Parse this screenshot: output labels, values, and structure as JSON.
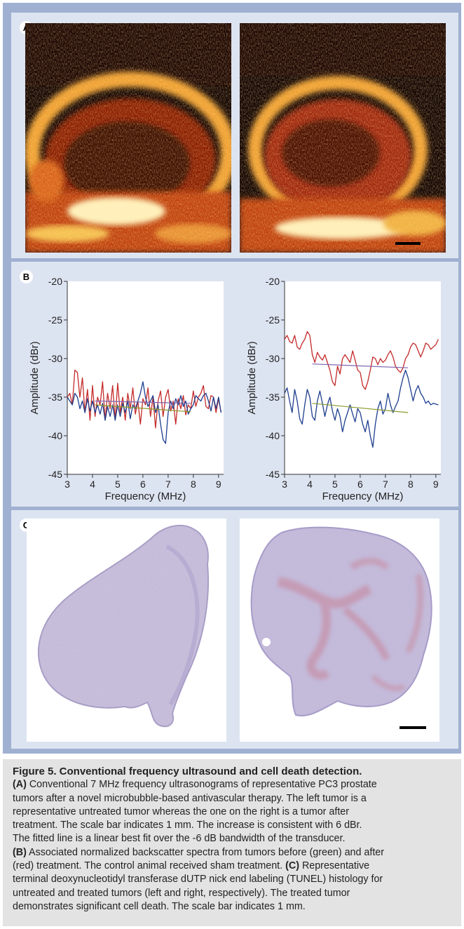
{
  "panels": {
    "a": {
      "letter": "A"
    },
    "b": {
      "letter": "B"
    },
    "c": {
      "letter": "C"
    }
  },
  "colors": {
    "red": "#c42b2b",
    "blue": "#1e3e8f",
    "green": "#8a9a2a",
    "purple": "#7d64b0"
  },
  "chart_data": [
    {
      "type": "line",
      "xlabel": "Frequency (MHz)",
      "ylabel": "Amplitude (dBr)",
      "xlim": [
        3,
        9.2
      ],
      "ylim": [
        -45,
        -20
      ],
      "xticks": [
        "3",
        "4",
        "5",
        "6",
        "7",
        "8",
        "9"
      ],
      "yticks": [
        "-20",
        "-25",
        "-30",
        "-35",
        "-40",
        "-45"
      ],
      "grid": false,
      "series": [
        {
          "color": "#c42b2b",
          "x": [
            3,
            3.1,
            3.2,
            3.3,
            3.4,
            3.5,
            3.6,
            3.7,
            3.8,
            3.9,
            4.0,
            4.1,
            4.2,
            4.3,
            4.4,
            4.5,
            4.6,
            4.7,
            4.8,
            4.9,
            5.0,
            5.1,
            5.2,
            5.3,
            5.4,
            5.5,
            5.6,
            5.7,
            5.8,
            5.9,
            6.0,
            6.1,
            6.2,
            6.3,
            6.4,
            6.5,
            6.6,
            6.7,
            6.8,
            6.9,
            7.0,
            7.1,
            7.2,
            7.3,
            7.4,
            7.5,
            7.6,
            7.7,
            7.8,
            7.9,
            8.0,
            8.1,
            8.2,
            8.3,
            8.4,
            8.5,
            8.6,
            8.7,
            8.8,
            8.9,
            9.0,
            9.1
          ],
          "values": [
            -35,
            -34.5,
            -36,
            -31.5,
            -31.8,
            -35,
            -32.5,
            -37,
            -34,
            -38,
            -33.5,
            -37.5,
            -35,
            -36,
            -33,
            -38,
            -34.5,
            -36.5,
            -33.5,
            -38,
            -33.2,
            -37,
            -35,
            -38,
            -34.5,
            -36.5,
            -33.8,
            -37.2,
            -35.5,
            -38.5,
            -35.2,
            -36,
            -33.8,
            -37.5,
            -35,
            -39,
            -35.5,
            -34.2,
            -37.5,
            -35,
            -34,
            -36.8,
            -35.5,
            -38.5,
            -35.2,
            -36.5,
            -34.8,
            -37.3,
            -36,
            -36.5,
            -34.2,
            -36.2,
            -35,
            -34.5,
            -33.5,
            -36.2,
            -36.5,
            -34.8,
            -35,
            -37,
            -35.2,
            -37
          ]
        },
        {
          "color": "#1e3e8f",
          "x": [
            3,
            3.1,
            3.2,
            3.3,
            3.4,
            3.5,
            3.6,
            3.7,
            3.8,
            3.9,
            4.0,
            4.1,
            4.2,
            4.3,
            4.4,
            4.5,
            4.6,
            4.7,
            4.8,
            4.9,
            5.0,
            5.1,
            5.2,
            5.3,
            5.4,
            5.5,
            5.6,
            5.7,
            5.8,
            5.9,
            6.0,
            6.1,
            6.2,
            6.3,
            6.4,
            6.5,
            6.6,
            6.7,
            6.8,
            6.9,
            7.0,
            7.1,
            7.2,
            7.3,
            7.4,
            7.5,
            7.6,
            7.7,
            7.8,
            7.9,
            8.0,
            8.1,
            8.2,
            8.3,
            8.4,
            8.5,
            8.6,
            8.7,
            8.8,
            8.9,
            9.0,
            9.1
          ],
          "values": [
            -35,
            -35.5,
            -36,
            -34.5,
            -35,
            -36.5,
            -35.5,
            -37,
            -35.2,
            -36.8,
            -35.5,
            -37,
            -36,
            -37.2,
            -35.8,
            -38,
            -36.2,
            -37.5,
            -36,
            -38,
            -36,
            -37.5,
            -35.8,
            -37,
            -35.5,
            -37.8,
            -36,
            -36.5,
            -35.5,
            -34.5,
            -33,
            -35,
            -36.2,
            -35.5,
            -34.8,
            -37,
            -36,
            -38.5,
            -40.5,
            -41,
            -37,
            -35.5,
            -36.5,
            -35.2,
            -36,
            -34.8,
            -36.2,
            -35.5,
            -37.2,
            -36.5,
            -36,
            -34.8,
            -35.2,
            -35.5,
            -34.8,
            -34.5,
            -35.5,
            -36.8,
            -35,
            -36.5,
            -35,
            -37
          ]
        },
        {
          "color": "#8a9a2a",
          "x": [
            4.1,
            7.9
          ],
          "values": [
            -36.0,
            -36.9
          ]
        },
        {
          "color": "#7d64b0",
          "x": [
            4.1,
            7.9
          ],
          "values": [
            -35.5,
            -35.8
          ]
        }
      ]
    },
    {
      "type": "line",
      "xlabel": "Frequency (MHz)",
      "ylabel": "Amplitude (dBr)",
      "xlim": [
        3,
        9.2
      ],
      "ylim": [
        -45,
        -20
      ],
      "xticks": [
        "3",
        "4",
        "5",
        "6",
        "7",
        "8",
        "9"
      ],
      "yticks": [
        "-20",
        "-25",
        "-30",
        "-35",
        "-40",
        "-45"
      ],
      "grid": false,
      "series": [
        {
          "color": "#c42b2b",
          "x": [
            3,
            3.1,
            3.2,
            3.3,
            3.4,
            3.5,
            3.6,
            3.7,
            3.8,
            3.9,
            4.0,
            4.1,
            4.2,
            4.3,
            4.4,
            4.5,
            4.6,
            4.7,
            4.8,
            4.9,
            5.0,
            5.1,
            5.2,
            5.3,
            5.4,
            5.5,
            5.6,
            5.7,
            5.8,
            5.9,
            6.0,
            6.1,
            6.2,
            6.3,
            6.4,
            6.5,
            6.6,
            6.7,
            6.8,
            6.9,
            7.0,
            7.1,
            7.2,
            7.3,
            7.4,
            7.5,
            7.6,
            7.7,
            7.8,
            7.9,
            8.0,
            8.1,
            8.2,
            8.3,
            8.4,
            8.5,
            8.6,
            8.7,
            8.8,
            8.9,
            9.0,
            9.1
          ],
          "values": [
            -27.5,
            -27,
            -27.8,
            -28,
            -27,
            -28.5,
            -28.8,
            -28,
            -27.5,
            -26.5,
            -27,
            -29.5,
            -30.5,
            -29.2,
            -29.8,
            -30.2,
            -29.5,
            -30.5,
            -31.5,
            -33,
            -33.5,
            -31,
            -32,
            -30,
            -29.5,
            -30,
            -30.5,
            -29,
            -30.2,
            -31.5,
            -31.8,
            -33.5,
            -34,
            -33,
            -31.5,
            -29.8,
            -30,
            -30.8,
            -30,
            -30.5,
            -30.2,
            -29.5,
            -29,
            -29.8,
            -31,
            -31.5,
            -31.8,
            -31.2,
            -30,
            -29.5,
            -28.5,
            -28,
            -28.2,
            -29,
            -29.8,
            -29,
            -28,
            -28.2,
            -28.8,
            -28.5,
            -28.2,
            -27.5
          ]
        },
        {
          "color": "#1e3e8f",
          "x": [
            3,
            3.1,
            3.2,
            3.3,
            3.4,
            3.5,
            3.6,
            3.7,
            3.8,
            3.9,
            4.0,
            4.1,
            4.2,
            4.3,
            4.4,
            4.5,
            4.6,
            4.7,
            4.8,
            4.9,
            5.0,
            5.1,
            5.2,
            5.3,
            5.4,
            5.5,
            5.6,
            5.7,
            5.8,
            5.9,
            6.0,
            6.1,
            6.2,
            6.3,
            6.4,
            6.5,
            6.6,
            6.7,
            6.8,
            6.9,
            7.0,
            7.1,
            7.2,
            7.3,
            7.4,
            7.5,
            7.6,
            7.7,
            7.8,
            7.9,
            8.0,
            8.1,
            8.2,
            8.3,
            8.4,
            8.5,
            8.6,
            8.7,
            8.8,
            8.9,
            9.0,
            9.1
          ],
          "values": [
            -34.5,
            -33.8,
            -35.5,
            -37,
            -34,
            -35.5,
            -37.8,
            -38.5,
            -36,
            -34,
            -35,
            -37.5,
            -38,
            -35.5,
            -34.2,
            -35.8,
            -37.5,
            -36,
            -35,
            -36.8,
            -38,
            -36.5,
            -37.5,
            -39.5,
            -38,
            -37,
            -36,
            -37.2,
            -38.2,
            -36.5,
            -37,
            -38.5,
            -39.5,
            -38,
            -40,
            -41.5,
            -38.5,
            -36.5,
            -35.5,
            -37.2,
            -36.5,
            -34.5,
            -36,
            -37,
            -36.2,
            -35.5,
            -33.8,
            -32.5,
            -31.5,
            -32.5,
            -34,
            -35.5,
            -34.2,
            -33.5,
            -34.5,
            -35,
            -35.8,
            -35.5,
            -36,
            -35.8,
            -35.9,
            -36
          ]
        },
        {
          "color": "#8a9a2a",
          "x": [
            4.1,
            7.9
          ],
          "values": [
            -35.8,
            -37.0
          ]
        },
        {
          "color": "#7d64b0",
          "x": [
            4.1,
            7.9
          ],
          "values": [
            -30.7,
            -31.2
          ]
        }
      ]
    }
  ],
  "caption": {
    "title": "Figure 5. Conventional frequency ultrasound and cell death detection.",
    "a_label": "(A)",
    "a_line1": "Conventional 7 MHz frequency ultrasonograms of representative PC3 prostate",
    "line2": "tumors after a novel microbubble-based antivascular therapy. The left tumor is a",
    "line3": "representative untreated tumor whereas the one on the right is a tumor after",
    "line4": "treatment. The scale bar indicates 1 mm. The increase is consistent with 6 dBr.",
    "line5": "The fitted line is a linear best fit over the -6 dB bandwidth of the transducer.",
    "b_label": "(B)",
    "b_line1": "Associated normalized backscatter spectra from tumors before (green) and after",
    "line7_pre": "(red) treatment. The control animal received sham treatment.",
    "c_label": "(C)",
    "line7_post": "Representative",
    "line8": "terminal deoxynucleotidyl transferase dUTP nick end labeling (TUNEL) histology for",
    "line9": "untreated and treated tumors (left and right, respectively). The treated tumor",
    "line10": "demonstrates significant cell death. The scale bar indicates 1 mm."
  }
}
